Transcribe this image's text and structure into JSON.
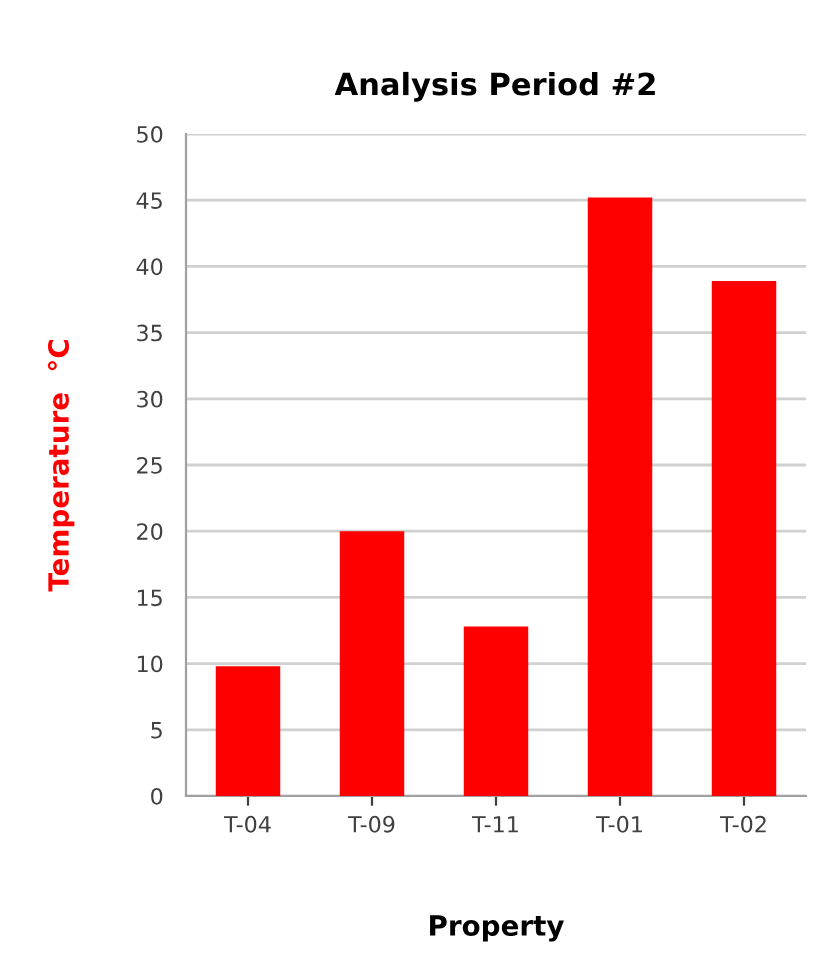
{
  "chart_data": {
    "type": "bar",
    "title": "Analysis Period #2",
    "xlabel": "Property",
    "ylabel": "Temperature  °C",
    "categories": [
      "T-04",
      "T-09",
      "T-11",
      "T-01",
      "T-02"
    ],
    "values": [
      9.8,
      20,
      12.8,
      45.2,
      38.9
    ],
    "color": "#ff0000",
    "ylim": [
      0,
      50
    ],
    "yticks": [
      0,
      5,
      10,
      15,
      20,
      25,
      30,
      35,
      40,
      45,
      50
    ],
    "grid": "y",
    "legend": false
  }
}
